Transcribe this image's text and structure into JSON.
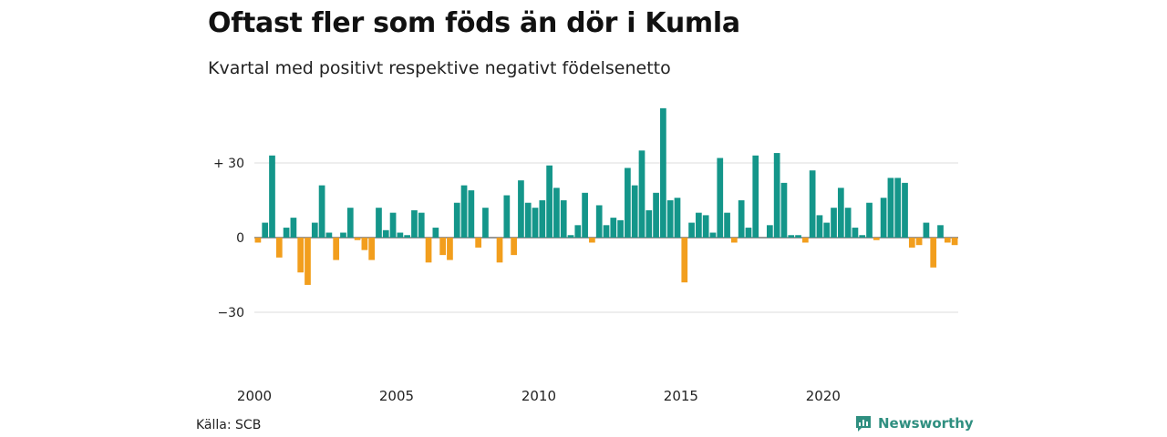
{
  "title": "Oftast fler som föds än dör i Kumla",
  "subtitle": "Kvartal med positivt respektive negativt födelsenetto",
  "source": "Källa: SCB",
  "brand": "Newsworthy",
  "colors": {
    "positive": "#14968a",
    "negative": "#f29e1d",
    "grid": "#dddddd",
    "brand": "#2f8f80"
  },
  "chart_data": {
    "type": "bar",
    "title": "Oftast fler som föds än dör i Kumla",
    "subtitle": "Kvartal med positivt respektive negativt födelsenetto",
    "xlabel": "",
    "ylabel": "",
    "ylim": [
      -45,
      52
    ],
    "grid": true,
    "legend": "none",
    "y_ticks": [
      {
        "value": 30,
        "label": "+ 30"
      },
      {
        "value": 0,
        "label": "0"
      },
      {
        "value": -30,
        "label": "−30"
      }
    ],
    "x_ticks": [
      "2000",
      "2005",
      "2010",
      "2015",
      "2020"
    ],
    "x_tick_index": [
      0,
      20,
      40,
      60,
      80
    ],
    "x_start": "2000 Q1",
    "x_unit": "quarter",
    "values": [
      -2,
      6,
      33,
      -8,
      4,
      8,
      -14,
      -19,
      6,
      21,
      2,
      -9,
      2,
      12,
      -1,
      -5,
      -9,
      12,
      3,
      10,
      2,
      1,
      11,
      10,
      -10,
      4,
      -7,
      -9,
      14,
      21,
      19,
      -4,
      12,
      0,
      -10,
      17,
      -7,
      23,
      14,
      12,
      15,
      29,
      20,
      15,
      1,
      5,
      18,
      -2,
      13,
      5,
      8,
      7,
      28,
      21,
      35,
      11,
      18,
      52,
      15,
      16,
      -18,
      6,
      10,
      9,
      2,
      32,
      10,
      -2,
      15,
      4,
      33,
      0,
      5,
      34,
      22,
      1,
      1,
      -2,
      27,
      9,
      6,
      12,
      20,
      12,
      4,
      1,
      14,
      -1,
      16,
      24,
      24,
      22,
      -4,
      -3,
      6,
      -12,
      5,
      -2,
      -3
    ]
  }
}
